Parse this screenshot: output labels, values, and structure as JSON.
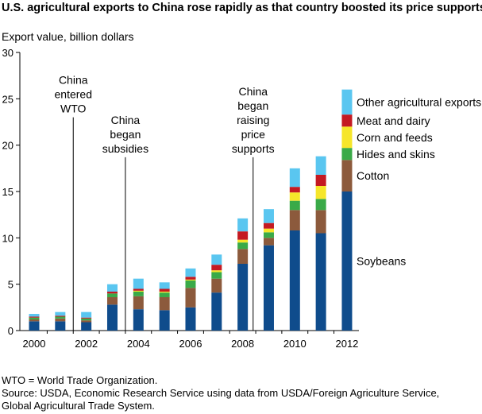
{
  "chart_data": {
    "type": "bar",
    "stacked": true,
    "title": "U.S. agricultural exports to China rose rapidly as that country boosted its price supports",
    "ylabel": "Export value, billion dollars",
    "xlabel": "",
    "ylim": [
      0,
      30
    ],
    "yticks": [
      0,
      5,
      10,
      15,
      20,
      25,
      30
    ],
    "x_tick_labels": [
      "2000",
      "2002",
      "2004",
      "2006",
      "2008",
      "2010",
      "2012"
    ],
    "categories": [
      2000,
      2001,
      2002,
      2003,
      2004,
      2005,
      2006,
      2007,
      2008,
      2009,
      2010,
      2011,
      2012
    ],
    "series": [
      {
        "name": "Soybeans",
        "color": "#0f4c8c",
        "values": [
          1.0,
          1.0,
          0.9,
          2.8,
          2.3,
          2.2,
          2.5,
          4.1,
          7.2,
          9.2,
          10.8,
          10.5,
          15.0
        ]
      },
      {
        "name": "Cotton",
        "color": "#8c5a3c",
        "values": [
          0.2,
          0.3,
          0.2,
          0.8,
          1.4,
          1.4,
          2.1,
          1.5,
          1.6,
          0.8,
          2.2,
          2.5,
          3.4
        ]
      },
      {
        "name": "Hides and skins",
        "color": "#3aaa48",
        "values": [
          0.2,
          0.2,
          0.2,
          0.4,
          0.5,
          0.5,
          0.8,
          0.7,
          0.7,
          0.6,
          1.0,
          1.2,
          1.3
        ]
      },
      {
        "name": "Corn and feeds",
        "color": "#f6e62a",
        "values": [
          0.0,
          0.0,
          0.0,
          0.0,
          0.1,
          0.1,
          0.1,
          0.2,
          0.3,
          0.4,
          0.9,
          1.4,
          2.3
        ]
      },
      {
        "name": "Meat and dairy",
        "color": "#c41a22",
        "values": [
          0.1,
          0.1,
          0.1,
          0.2,
          0.2,
          0.3,
          0.3,
          0.6,
          0.9,
          0.6,
          0.6,
          1.2,
          1.3
        ]
      },
      {
        "name": "Other agricultural exports",
        "color": "#5ac6f0",
        "values": [
          0.3,
          0.4,
          0.6,
          0.8,
          1.1,
          0.7,
          0.9,
          1.1,
          1.4,
          1.5,
          2.0,
          2.0,
          2.7
        ]
      }
    ],
    "legend_placement": "right of last bar",
    "annotations": [
      {
        "text": [
          "China",
          "entered",
          "WTO"
        ],
        "x": 2001.5,
        "y_top": 23.0
      },
      {
        "text": [
          "China",
          "began",
          "subsidies"
        ],
        "x": 2003.5,
        "y_top": 18.7
      },
      {
        "text": [
          "China",
          "began",
          "raising",
          "price",
          "supports"
        ],
        "x": 2008.4,
        "y_top": 18.7
      }
    ],
    "notes": [
      "WTO = World Trade Organization.",
      "Source: USDA, Economic Research Service using data from USDA/Foreign Agriculture Service,",
      "Global Agricultural Trade System."
    ]
  }
}
